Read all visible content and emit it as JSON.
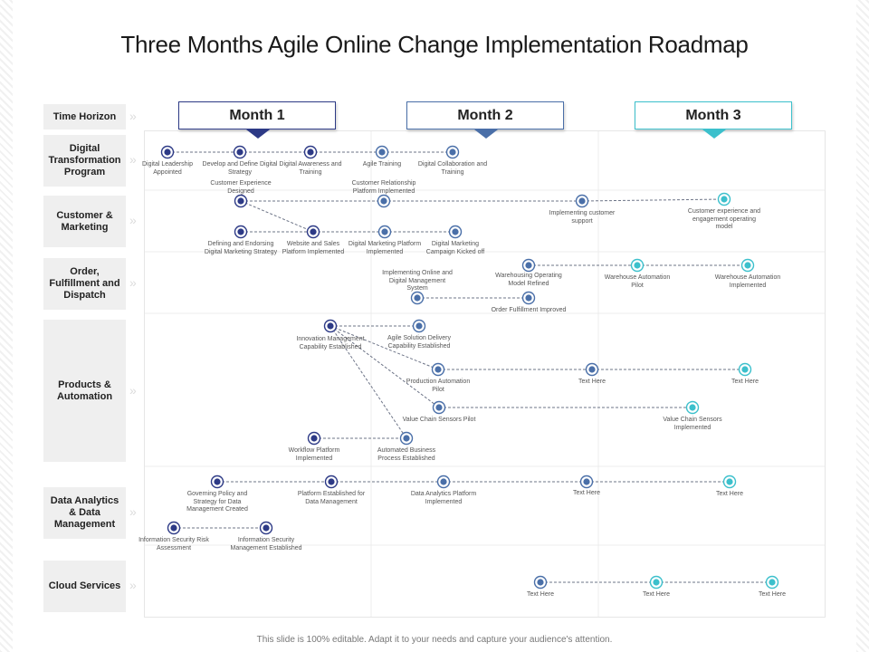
{
  "title": "Three Months Agile Online Change Implementation Roadmap",
  "footer": "This slide is 100% editable. Adapt it to your needs and capture your audience's attention.",
  "time_horizon_label": "Time Horizon",
  "months": [
    {
      "label": "Month 1",
      "color": "#2d3a86"
    },
    {
      "label": "Month 2",
      "color": "#4a6fa8"
    },
    {
      "label": "Month 3",
      "color": "#3cc0cc"
    }
  ],
  "rows": [
    {
      "label": "Digital Transformation Program"
    },
    {
      "label": "Customer & Marketing"
    },
    {
      "label": "Order, Fulfillment and Dispatch"
    },
    {
      "label": "Products & Automation"
    },
    {
      "label": "Data Analytics & Data Management"
    },
    {
      "label": "Cloud Services"
    }
  ],
  "colors": {
    "dark": "#2d3a86",
    "mid": "#4a6fa8",
    "teal": "#3cc0cc",
    "line": "#6d7487"
  },
  "nodes": [
    {
      "label": "Digital Leadership Appointed",
      "color": "dark"
    },
    {
      "label": "Develop and Define Digital Strategy",
      "color": "dark"
    },
    {
      "label": "Digital Awareness and Training",
      "color": "dark"
    },
    {
      "label": "Agile Training",
      "color": "mid"
    },
    {
      "label": "Digital Collaboration and Training",
      "color": "mid"
    },
    {
      "label": "Customer Experience Designed",
      "color": "dark"
    },
    {
      "label": "Customer Relationship Platform Implemented",
      "color": "mid"
    },
    {
      "label": "Implementing customer support",
      "color": "mid"
    },
    {
      "label": "Customer experience and engagement operating model",
      "color": "teal"
    },
    {
      "label": "Defining and Endorsing Digital Marketing Strategy",
      "color": "dark"
    },
    {
      "label": "Website and Sales Platform Implemented",
      "color": "dark"
    },
    {
      "label": "Digital Marketing Platform Implemented",
      "color": "mid"
    },
    {
      "label": "Digital Marketing Campaign Kicked off",
      "color": "mid"
    },
    {
      "label": "Warehousing Operating Model Refined",
      "color": "mid"
    },
    {
      "label": "Warehouse Automation Pilot",
      "color": "teal"
    },
    {
      "label": "Warehouse Automation Implemented",
      "color": "teal"
    },
    {
      "label": "Implementing Online and Digital Management System",
      "color": "mid"
    },
    {
      "label": "Order Fulfillment Improved",
      "color": "mid"
    },
    {
      "label": "Innovation Management Capability Established",
      "color": "dark"
    },
    {
      "label": "Agile Solution Delivery Capability Established",
      "color": "mid"
    },
    {
      "label": "Production Automation Pilot",
      "color": "mid"
    },
    {
      "label": "Text Here",
      "color": "mid"
    },
    {
      "label": "Text Here",
      "color": "teal"
    },
    {
      "label": "Value Chain Sensors Pilot",
      "color": "mid"
    },
    {
      "label": "Value Chain Sensors Implemented",
      "color": "teal"
    },
    {
      "label": "Workflow Platform Implemented",
      "color": "dark"
    },
    {
      "label": "Automated Business Process Established",
      "color": "mid"
    },
    {
      "label": "Governing Policy and Strategy for Data Management Created",
      "color": "dark"
    },
    {
      "label": "Platform Established for Data Management",
      "color": "dark"
    },
    {
      "label": "Data Analytics Platform Implemented",
      "color": "mid"
    },
    {
      "label": "Text Here",
      "color": "mid"
    },
    {
      "label": "Text Here",
      "color": "teal"
    },
    {
      "label": "Information Security Risk Assessment",
      "color": "dark"
    },
    {
      "label": "Information Security Management Established",
      "color": "dark"
    },
    {
      "label": "Text Here",
      "color": "mid"
    },
    {
      "label": "Text Here",
      "color": "teal"
    },
    {
      "label": "Text Here",
      "color": "teal"
    }
  ]
}
